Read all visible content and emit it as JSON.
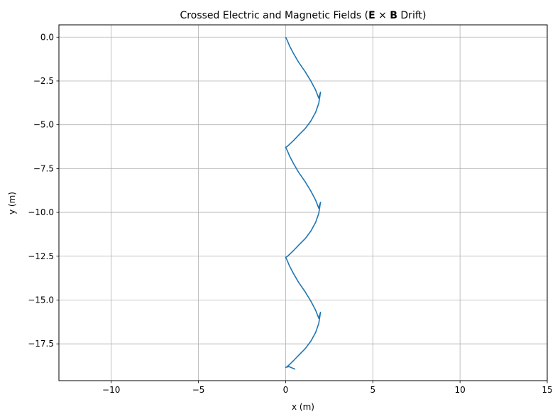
{
  "chart_data": {
    "type": "line",
    "title": {
      "prefix": "Crossed Electric and Magnetic Fields (",
      "e": "E",
      "times": " × ",
      "b": "B",
      "suffix": " Drift)"
    },
    "xlabel": "x (m)",
    "ylabel": "y (m)",
    "xlim": [
      -13,
      15
    ],
    "ylim": [
      -19.6,
      0.7
    ],
    "xticks": [
      -10,
      -5,
      0,
      5,
      10,
      15
    ],
    "xtick_labels": [
      "−10",
      "−5",
      "0",
      "5",
      "10",
      "15"
    ],
    "yticks": [
      0,
      -2.5,
      -5,
      -7.5,
      -10,
      -12.5,
      -15,
      -17.5
    ],
    "ytick_labels": [
      "0.0",
      "−2.5",
      "−5.0",
      "−7.5",
      "−10.0",
      "−12.5",
      "−15.0",
      "−17.5"
    ],
    "grid": true,
    "line_color": "#1f77b4",
    "series": [
      {
        "x": [
          0,
          0.01,
          0.08,
          0.22,
          0.45,
          0.75,
          1.12,
          1.45,
          1.72,
          1.9,
          2.0,
          1.9,
          1.72,
          1.45,
          1.12,
          0.75,
          0.45,
          0.22,
          0.08,
          0.01,
          0,
          0.01,
          0.08,
          0.22,
          0.45,
          0.75,
          1.12,
          1.45,
          1.72,
          1.9,
          2.0,
          1.9,
          1.72,
          1.45,
          1.12,
          0.75,
          0.45,
          0.22,
          0.08,
          0.01,
          0,
          0.01,
          0.08,
          0.22,
          0.45,
          0.75,
          1.12,
          1.45,
          1.72,
          1.9,
          2.0,
          1.9,
          1.72,
          1.45,
          1.12,
          0.75,
          0.45,
          0.22,
          0.08,
          0.01,
          0,
          0.2,
          0.55
        ],
        "y": [
          0,
          -0.02,
          -0.16,
          -0.49,
          -0.93,
          -1.44,
          -1.97,
          -2.51,
          -3.02,
          -3.48,
          -3.14,
          -3.78,
          -4.29,
          -4.78,
          -5.22,
          -5.59,
          -5.9,
          -6.12,
          -6.25,
          -6.28,
          -6.28,
          -6.3,
          -6.44,
          -6.77,
          -7.21,
          -7.72,
          -8.25,
          -8.79,
          -9.3,
          -9.76,
          -9.42,
          -10.06,
          -10.57,
          -11.06,
          -11.5,
          -11.87,
          -12.18,
          -12.4,
          -12.53,
          -12.56,
          -12.56,
          -12.58,
          -12.72,
          -13.05,
          -13.49,
          -14.0,
          -14.53,
          -15.07,
          -15.58,
          -16.04,
          -15.7,
          -16.34,
          -16.85,
          -17.34,
          -17.78,
          -18.15,
          -18.46,
          -18.68,
          -18.81,
          -18.84,
          -18.84,
          -18.8,
          -18.95
        ]
      }
    ]
  }
}
